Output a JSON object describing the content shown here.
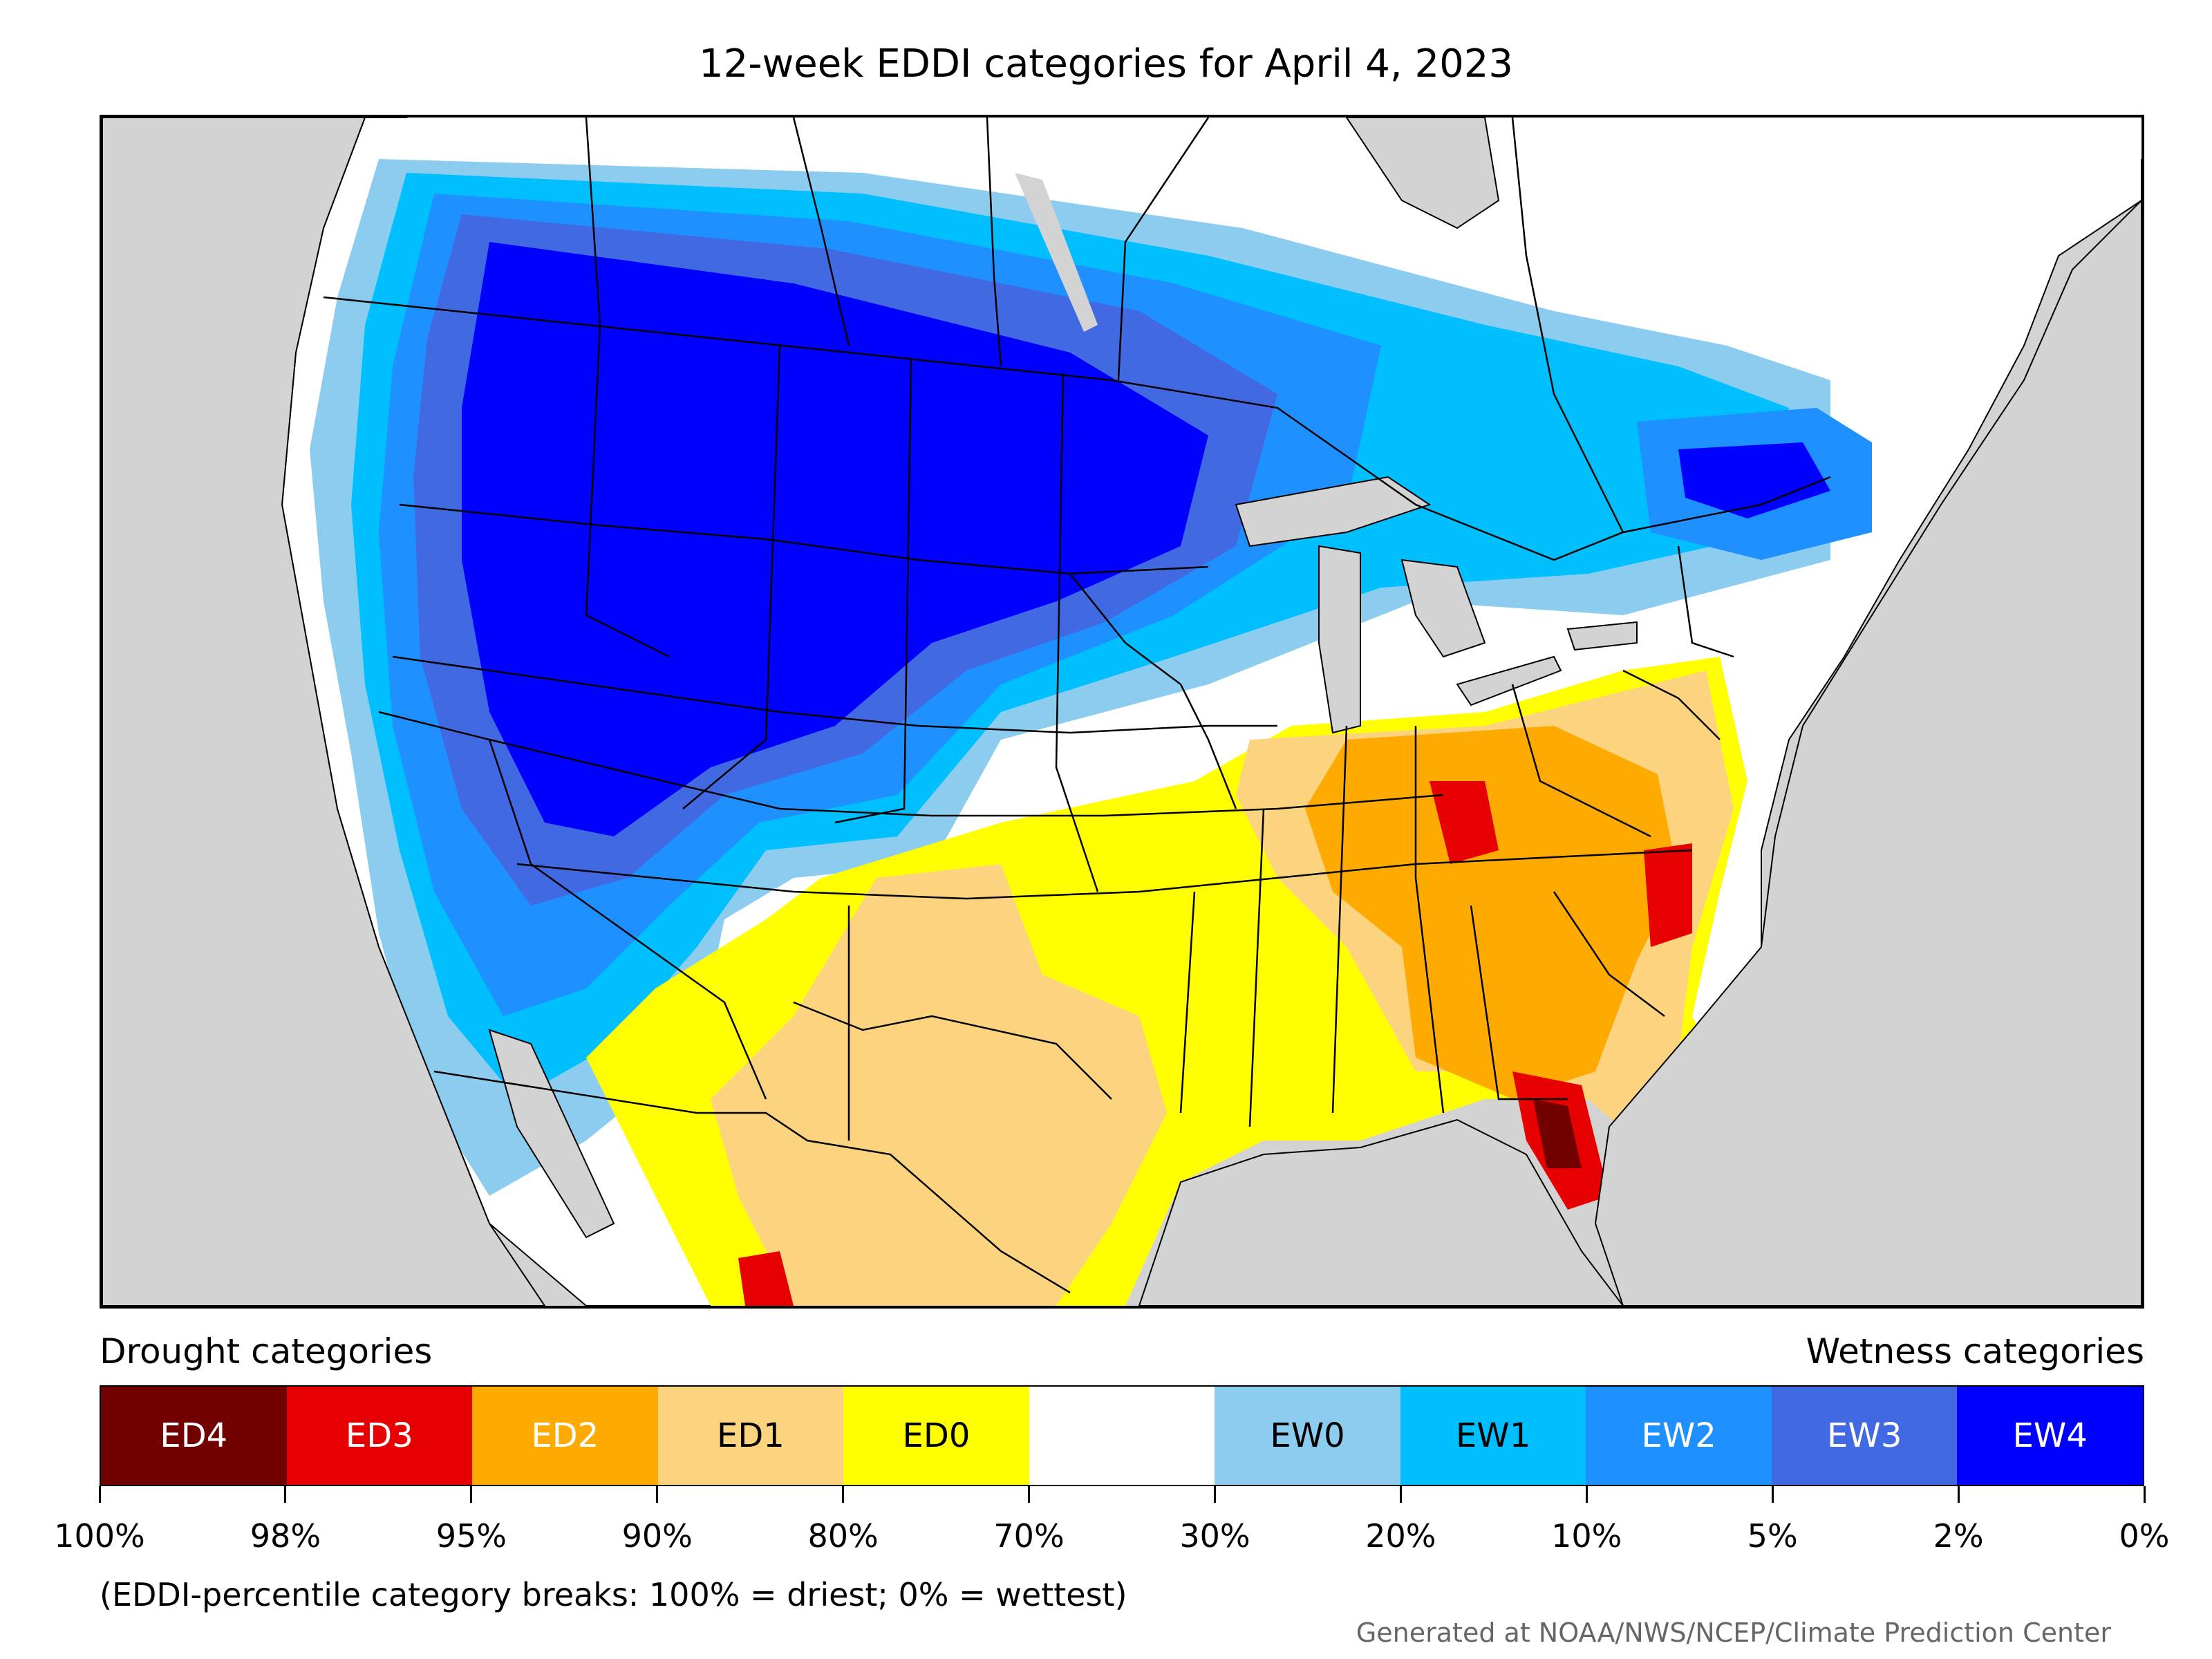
{
  "title": "12-week EDDI categories for April 4, 2023",
  "drought_label": "Drought categories",
  "wetness_label": "Wetness categories",
  "legend": [
    {
      "label": "ED4",
      "color": "#730000",
      "text_color": "#ffffff"
    },
    {
      "label": "ED3",
      "color": "#e60000",
      "text_color": "#ffffff"
    },
    {
      "label": "ED2",
      "color": "#ffaa00",
      "text_color": "#ffffff"
    },
    {
      "label": "ED1",
      "color": "#fcd37f",
      "text_color": "#000000"
    },
    {
      "label": "ED0",
      "color": "#ffff00",
      "text_color": "#000000"
    },
    {
      "label": "",
      "color": "#ffffff",
      "text_color": "#000000"
    },
    {
      "label": "EW0",
      "color": "#8ccdef",
      "text_color": "#000000"
    },
    {
      "label": "EW1",
      "color": "#00bfff",
      "text_color": "#000000"
    },
    {
      "label": "EW2",
      "color": "#1e90ff",
      "text_color": "#ffffff"
    },
    {
      "label": "EW3",
      "color": "#4169e1",
      "text_color": "#ffffff"
    },
    {
      "label": "EW4",
      "color": "#0000ff",
      "text_color": "#ffffff"
    }
  ],
  "breaks": [
    "100%",
    "98%",
    "95%",
    "90%",
    "80%",
    "70%",
    "30%",
    "20%",
    "10%",
    "5%",
    "2%",
    "0%"
  ],
  "note": "(EDDI-percentile category breaks: 100% = driest; 0% = wettest)",
  "credit": "Generated at NOAA/NWS/NCEP/Climate Prediction Center",
  "colors": {
    "land_background": "#d3d3d3",
    "water": "#d3d3d3",
    "boundaries": "#000000"
  }
}
